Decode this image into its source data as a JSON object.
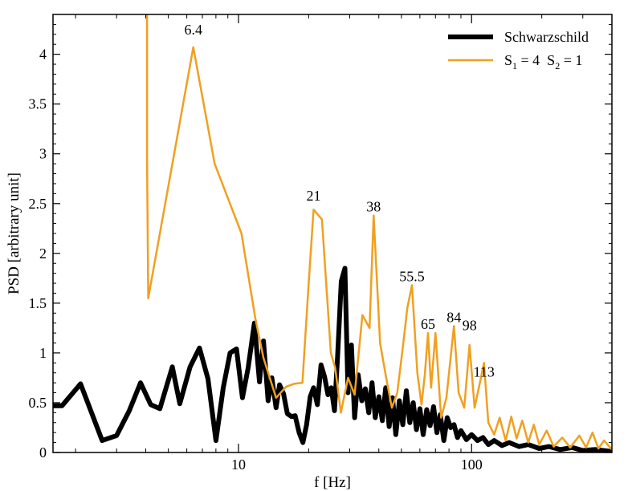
{
  "chart_data": {
    "type": "line",
    "xlabel": "f [Hz]",
    "ylabel": "PSD [arbitrary unit]",
    "xscale": "log",
    "xlim": [
      1.6,
      400
    ],
    "ylim": [
      0,
      4.4
    ],
    "x_tick_labels": [
      "10",
      "100"
    ],
    "x_ticks": [
      10,
      100
    ],
    "y_ticks": [
      0,
      0.5,
      1,
      1.5,
      2,
      2.5,
      3,
      3.5,
      4
    ],
    "y_tick_labels": [
      "0",
      "0.5",
      "1",
      "1.5",
      "2",
      "2.5",
      "3",
      "3.5",
      "4"
    ],
    "legend_position": "top-right",
    "grid": false,
    "series": [
      {
        "name": "Schwarzschild",
        "color": "#000000",
        "style": "thick",
        "points": [
          [
            1.6,
            0.47
          ],
          [
            1.75,
            0.47
          ],
          [
            2.1,
            0.69
          ],
          [
            2.6,
            0.12
          ],
          [
            3.0,
            0.17
          ],
          [
            3.4,
            0.42
          ],
          [
            3.8,
            0.7
          ],
          [
            4.2,
            0.48
          ],
          [
            4.6,
            0.44
          ],
          [
            5.2,
            0.86
          ],
          [
            5.6,
            0.49
          ],
          [
            6.2,
            0.86
          ],
          [
            6.8,
            1.05
          ],
          [
            7.4,
            0.74
          ],
          [
            8.0,
            0.12
          ],
          [
            8.6,
            0.65
          ],
          [
            9.2,
            1.0
          ],
          [
            9.8,
            1.04
          ],
          [
            10.4,
            0.55
          ],
          [
            11.0,
            0.85
          ],
          [
            11.7,
            1.3
          ],
          [
            12.3,
            0.71
          ],
          [
            12.8,
            1.12
          ],
          [
            13.4,
            0.52
          ],
          [
            13.9,
            0.75
          ],
          [
            14.5,
            0.45
          ],
          [
            15.0,
            0.68
          ],
          [
            15.6,
            0.59
          ],
          [
            16.2,
            0.39
          ],
          [
            16.9,
            0.36
          ],
          [
            17.5,
            0.37
          ],
          [
            18.2,
            0.2
          ],
          [
            18.9,
            0.1
          ],
          [
            19.6,
            0.28
          ],
          [
            20.3,
            0.56
          ],
          [
            21.0,
            0.65
          ],
          [
            21.8,
            0.48
          ],
          [
            22.6,
            0.88
          ],
          [
            23.4,
            0.76
          ],
          [
            24.2,
            0.58
          ],
          [
            25.0,
            0.65
          ],
          [
            25.8,
            0.42
          ],
          [
            26.6,
            0.95
          ],
          [
            27.6,
            1.72
          ],
          [
            28.6,
            1.85
          ],
          [
            29.5,
            0.6
          ],
          [
            30.5,
            1.08
          ],
          [
            31.5,
            0.35
          ],
          [
            32.6,
            0.78
          ],
          [
            33.8,
            0.52
          ],
          [
            35.0,
            0.64
          ],
          [
            36.2,
            0.4
          ],
          [
            37.4,
            0.7
          ],
          [
            38.6,
            0.35
          ],
          [
            40.0,
            0.56
          ],
          [
            41.4,
            0.32
          ],
          [
            42.8,
            0.65
          ],
          [
            44.3,
            0.26
          ],
          [
            45.8,
            0.55
          ],
          [
            47.3,
            0.18
          ],
          [
            49.0,
            0.52
          ],
          [
            50.7,
            0.28
          ],
          [
            52.5,
            0.62
          ],
          [
            54.3,
            0.3
          ],
          [
            56.2,
            0.5
          ],
          [
            58.0,
            0.23
          ],
          [
            60.0,
            0.44
          ],
          [
            62.0,
            0.18
          ],
          [
            64.2,
            0.43
          ],
          [
            66.4,
            0.27
          ],
          [
            68.7,
            0.46
          ],
          [
            71.0,
            0.2
          ],
          [
            73.4,
            0.38
          ],
          [
            76.0,
            0.12
          ],
          [
            78.6,
            0.35
          ],
          [
            81.3,
            0.25
          ],
          [
            84.1,
            0.28
          ],
          [
            87.0,
            0.15
          ],
          [
            90.0,
            0.22
          ],
          [
            95.0,
            0.13
          ],
          [
            100.0,
            0.18
          ],
          [
            106.0,
            0.12
          ],
          [
            112.0,
            0.15
          ],
          [
            118.0,
            0.08
          ],
          [
            125.0,
            0.12
          ],
          [
            135.0,
            0.07
          ],
          [
            145.0,
            0.1
          ],
          [
            160.0,
            0.06
          ],
          [
            175.0,
            0.08
          ],
          [
            195.0,
            0.04
          ],
          [
            215.0,
            0.06
          ],
          [
            240.0,
            0.03
          ],
          [
            270.0,
            0.05
          ],
          [
            300.0,
            0.02
          ],
          [
            340.0,
            0.03
          ],
          [
            400.0,
            0.01
          ]
        ]
      },
      {
        "name": "S₁ = 4  S₂ = 1",
        "legend_parts": [
          "S",
          "1",
          " = 4  S",
          "2",
          " = 1"
        ],
        "color": "#f0a020",
        "style": "thin",
        "points": [
          [
            4.05,
            4.4
          ],
          [
            4.05,
            2.95
          ],
          [
            4.1,
            1.55
          ],
          [
            6.4,
            4.07
          ],
          [
            7.9,
            2.9
          ],
          [
            10.3,
            2.2
          ],
          [
            11.8,
            1.35
          ],
          [
            12.8,
            0.95
          ],
          [
            14.5,
            0.55
          ],
          [
            16.0,
            0.66
          ],
          [
            17.3,
            0.69
          ],
          [
            18.8,
            0.7
          ],
          [
            20.0,
            1.7
          ],
          [
            21.0,
            2.44
          ],
          [
            22.8,
            2.34
          ],
          [
            24.9,
            1.0
          ],
          [
            26.0,
            0.85
          ],
          [
            27.5,
            0.4
          ],
          [
            29.5,
            0.75
          ],
          [
            31.5,
            0.58
          ],
          [
            34.0,
            1.38
          ],
          [
            36.5,
            1.25
          ],
          [
            38.0,
            2.38
          ],
          [
            40.5,
            1.1
          ],
          [
            43.0,
            0.75
          ],
          [
            45.5,
            0.45
          ],
          [
            48.0,
            0.6
          ],
          [
            50.5,
            1.02
          ],
          [
            53.0,
            1.45
          ],
          [
            55.5,
            1.68
          ],
          [
            58.5,
            0.8
          ],
          [
            61.0,
            0.48
          ],
          [
            63.0,
            0.78
          ],
          [
            65.0,
            1.2
          ],
          [
            67.0,
            0.65
          ],
          [
            70.0,
            1.2
          ],
          [
            74.0,
            0.35
          ],
          [
            78.0,
            0.55
          ],
          [
            84.0,
            1.27
          ],
          [
            88.0,
            0.6
          ],
          [
            93.0,
            0.45
          ],
          [
            98.0,
            1.08
          ],
          [
            103.0,
            0.45
          ],
          [
            109.0,
            0.72
          ],
          [
            113.0,
            0.9
          ],
          [
            118.0,
            0.3
          ],
          [
            125.0,
            0.18
          ],
          [
            132.0,
            0.35
          ],
          [
            140.0,
            0.12
          ],
          [
            148.0,
            0.36
          ],
          [
            156.0,
            0.14
          ],
          [
            165.0,
            0.32
          ],
          [
            175.0,
            0.1
          ],
          [
            185.0,
            0.28
          ],
          [
            195.0,
            0.08
          ],
          [
            210.0,
            0.22
          ],
          [
            225.0,
            0.06
          ],
          [
            245.0,
            0.15
          ],
          [
            265.0,
            0.05
          ],
          [
            290.0,
            0.17
          ],
          [
            310.0,
            0.05
          ],
          [
            330.0,
            0.2
          ],
          [
            350.0,
            0.04
          ],
          [
            370.0,
            0.12
          ],
          [
            400.0,
            0.03
          ]
        ]
      }
    ],
    "annotations": [
      {
        "text": "6.4",
        "x": 6.4,
        "y": 4.2
      },
      {
        "text": "21",
        "x": 21,
        "y": 2.53
      },
      {
        "text": "38",
        "x": 38,
        "y": 2.42
      },
      {
        "text": "55.5",
        "x": 55.5,
        "y": 1.72
      },
      {
        "text": "65",
        "x": 65,
        "y": 1.24
      },
      {
        "text": "84",
        "x": 84,
        "y": 1.31
      },
      {
        "text": "98",
        "x": 98,
        "y": 1.23
      },
      {
        "text": "113",
        "x": 113,
        "y": 0.76
      }
    ]
  }
}
